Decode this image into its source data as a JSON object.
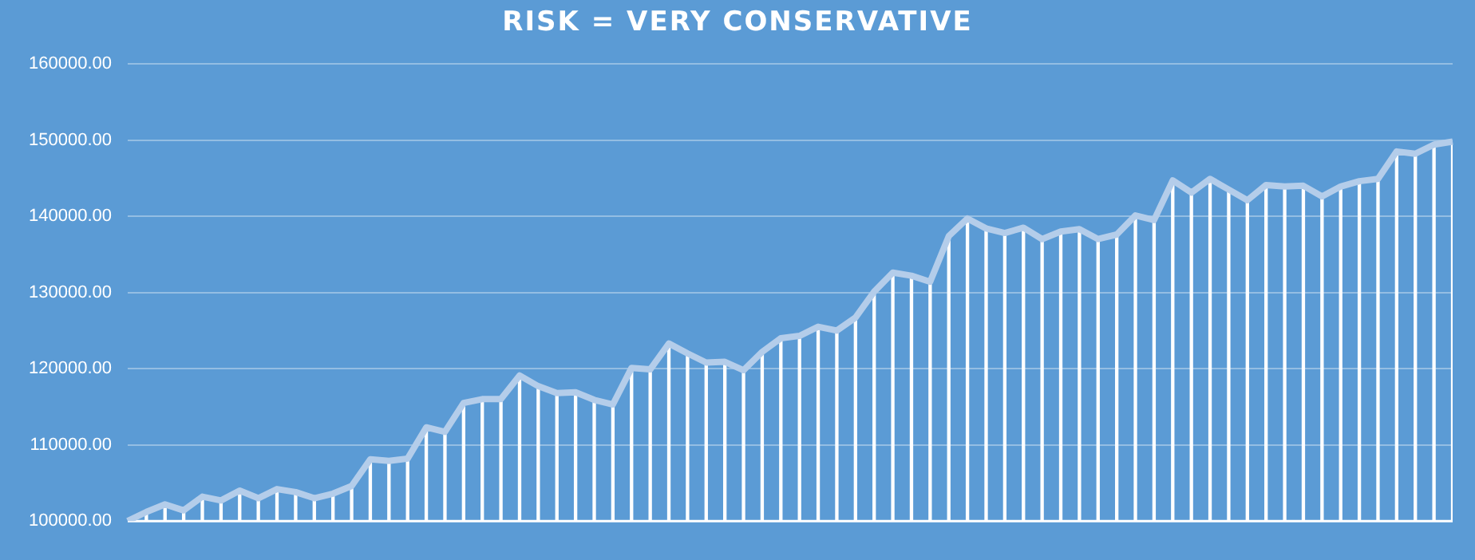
{
  "chart_data": {
    "type": "line",
    "title": "RISK = VERY CONSERVATIVE",
    "categories": [
      null,
      null,
      null,
      null,
      null,
      null,
      null,
      null,
      null,
      null,
      null,
      null,
      null,
      null,
      null,
      null,
      null,
      null,
      null,
      null,
      null,
      null,
      null,
      null,
      null,
      null,
      null,
      null,
      null,
      null,
      null,
      null,
      null,
      null,
      null,
      null,
      null,
      null,
      null,
      null,
      null,
      null,
      null,
      null,
      null,
      null,
      null,
      null,
      null,
      null,
      null,
      null,
      null,
      null,
      null,
      null,
      null,
      null,
      null,
      null,
      null,
      null,
      null,
      null,
      null,
      null,
      null,
      null,
      null,
      null,
      null,
      null
    ],
    "series": [
      {
        "type": "bar",
        "color": "#ffffff",
        "values": [
          100000,
          101200,
          102200,
          101400,
          103200,
          102700,
          104000,
          103000,
          104200,
          103800,
          103000,
          103600,
          104600,
          108100,
          107900,
          108200,
          112300,
          111700,
          115500,
          116000,
          116000,
          119100,
          117700,
          116800,
          116900,
          115900,
          115300,
          120100,
          119900,
          123300,
          122000,
          120800,
          120900,
          119800,
          122200,
          124000,
          124300,
          125500,
          125000,
          126700,
          130100,
          132600,
          132200,
          131400,
          137400,
          139700,
          138400,
          137800,
          138500,
          137000,
          138000,
          138300,
          137000,
          137600,
          140100,
          139500,
          144700,
          143100,
          144900,
          143500,
          142100,
          144100,
          143900,
          144000,
          142600,
          143900,
          144600,
          144900,
          148500,
          148200,
          149400,
          149800
        ]
      },
      {
        "color": "#b4cdea",
        "values": [
          100000,
          101200,
          102200,
          101400,
          103200,
          102700,
          104000,
          103000,
          104200,
          103800,
          103000,
          103600,
          104600,
          108100,
          107900,
          108200,
          112300,
          111700,
          115500,
          116000,
          116000,
          119100,
          117700,
          116800,
          116900,
          115900,
          115300,
          120100,
          119900,
          123300,
          122000,
          120800,
          120900,
          119800,
          122200,
          124000,
          124300,
          125500,
          125000,
          126700,
          130100,
          132600,
          132200,
          131400,
          137400,
          139700,
          138400,
          137800,
          138500,
          137000,
          138000,
          138300,
          137000,
          137600,
          140100,
          139500,
          144700,
          143100,
          144900,
          143500,
          142100,
          144100,
          143900,
          144000,
          142600,
          143900,
          144600,
          144900,
          148500,
          148200,
          149400,
          149800
        ]
      }
    ],
    "ylim": [
      100000,
      160000
    ],
    "yticks": [
      {
        "value": 100000,
        "label": "100000.00"
      },
      {
        "value": 110000,
        "label": "110000.00"
      },
      {
        "value": 120000,
        "label": "120000.00"
      },
      {
        "value": 130000,
        "label": "130000.00"
      },
      {
        "value": 140000,
        "label": "140000.00"
      },
      {
        "value": 150000,
        "label": "150000.00"
      },
      {
        "value": 160000,
        "label": "160000.00"
      }
    ],
    "grid": "y",
    "legend": false,
    "marker": "none",
    "line_style": "solid"
  }
}
